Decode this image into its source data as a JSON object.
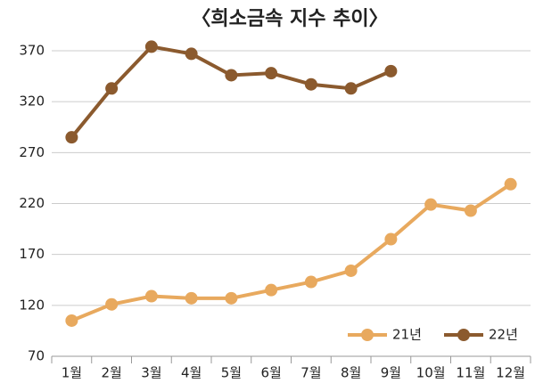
{
  "chart_data": {
    "type": "line",
    "title": "〈희소금속 지수 추이〉",
    "categories": [
      "1월",
      "2월",
      "3월",
      "4월",
      "5월",
      "6월",
      "7월",
      "8월",
      "9월",
      "10월",
      "11월",
      "12월"
    ],
    "series": [
      {
        "name": "21년",
        "color": "#e8a95e",
        "values": [
          105,
          121,
          129,
          127,
          127,
          135,
          143,
          154,
          185,
          219,
          213,
          239
        ]
      },
      {
        "name": "22년",
        "color": "#8b5a2e",
        "values": [
          285,
          333,
          374,
          367,
          346,
          348,
          337,
          333,
          350,
          null,
          null,
          null
        ]
      }
    ],
    "ylim": [
      70,
      370
    ],
    "yticks": [
      70,
      120,
      170,
      220,
      270,
      320,
      370
    ],
    "grid": true,
    "legend": "bottom-right"
  }
}
